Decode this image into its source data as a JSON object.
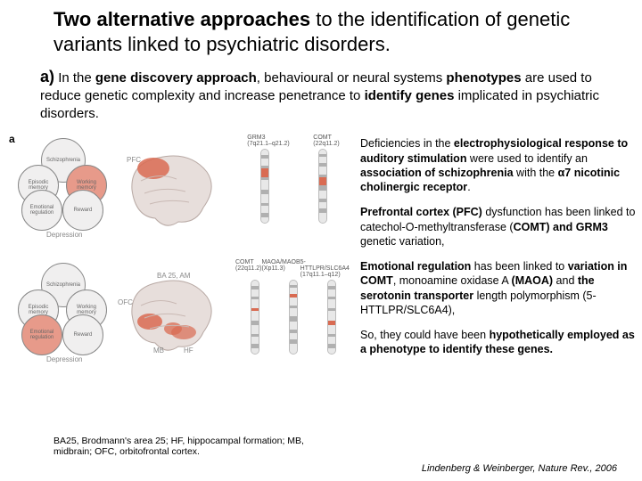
{
  "title_html": "<b>Two alternative approaches</b> to the identification of genetic variants linked to psychiatric disorders.",
  "section_a": {
    "label": "a)",
    "body_html": "In the <b>gene discovery approach</b>, behavioural or neural systems <b>phenotypes</b> are used to reduce genetic complexity and increase penetrance to <b>identify genes</b> implicated in psychiatric disorders."
  },
  "paragraphs": [
    "Deficiencies in the <b>electrophysiological response to auditory stimulation</b> were used to identify an <b>association of schizophrenia</b> with the <b>α7 nicotinic cholinergic receptor</b>.",
    "<b>Prefrontal cortex (PFC)</b> dysfunction has been linked to catechol-O-methyltransferase (<b>COMT) and GRM3</b> genetic variation,",
    "<b>Emotional regulation</b> has been linked to <b>variation in COMT</b>, monoamine oxidase A <b>(MAOA)</b> and <b>the serotonin transporter</b> length polymorphism (5-HTTLPR/SLC6A4),",
    "So, they could have been <b>hypothetically employed as a phenotype to identify these genes.</b>"
  ],
  "footnote": "BA25, Brodmann's area 25;  HF, hippocampal formation;  MB, midbrain;  OFC, orbitofrontal cortex.",
  "citation_html": "Lindenberg & Weinberger, <span class=\"nr\">Nature Rev.</span>, 2006",
  "figure": {
    "panel_label": "a",
    "circle_labels": {
      "top": "Schizophrenia",
      "left": "Episodic memory",
      "right": "Working memory",
      "bl": "Emotional regulation",
      "br": "Reward"
    },
    "cluster1_highlight": "right",
    "cluster2_highlight": "bl",
    "cluster_bottom_label": "Depression",
    "brain1": {
      "top_label": "PFC",
      "gene_labels": [
        "GRM3",
        "COMT"
      ],
      "gene_sub": [
        "(7q21.1–q21.2)",
        "(22q11.2)"
      ]
    },
    "brain2": {
      "labels": [
        "BA 25, AM",
        "OFC",
        "MB",
        "HF"
      ],
      "gene_labels": [
        "COMT",
        "MAOA/MAOB",
        "5-HTTLPR/SLC6A4"
      ],
      "gene_sub": [
        "(22q11.2)",
        "(Xp11.3)",
        "(17q11.1–q12)"
      ]
    },
    "chrom_colors": {
      "light": "#e8e8e8",
      "dark": "#b0b0b0",
      "highlight": "#d96b52",
      "outline": "#bbbbbb"
    },
    "chrom_bands": [
      [
        6,
        4,
        8,
        3,
        10,
        3,
        12,
        5,
        10,
        3,
        8,
        5,
        7
      ],
      [
        5,
        3,
        7,
        4,
        9,
        3,
        10,
        6,
        9,
        4,
        7,
        5,
        12
      ]
    ]
  },
  "colors": {
    "background": "#ffffff",
    "text": "#000000",
    "circle_fill": "#f0efef",
    "circle_highlight": "#e79a8a",
    "brain_fill": "#e7dedb",
    "brain_highlight": "#d96b52"
  }
}
